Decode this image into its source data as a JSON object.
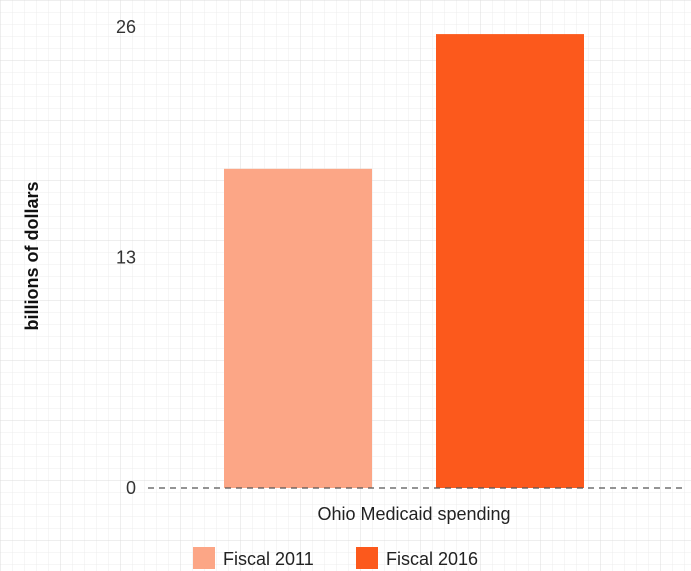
{
  "chart_data": {
    "type": "bar",
    "categories": [
      "Ohio Medicaid spending"
    ],
    "series": [
      {
        "name": "Fiscal 2011",
        "values": [
          18.0
        ],
        "color": "#fca686"
      },
      {
        "name": "Fiscal 2016",
        "values": [
          25.6
        ],
        "color": "#fc591c"
      }
    ],
    "ylabel": "billions of dollars",
    "xlabel": "",
    "yticks": [
      0,
      13,
      26
    ],
    "ylim": [
      0,
      26
    ],
    "grid": true,
    "grid_color": "#e6e6e6",
    "zero_line": "dashed",
    "legend_position": "bottom-center"
  }
}
